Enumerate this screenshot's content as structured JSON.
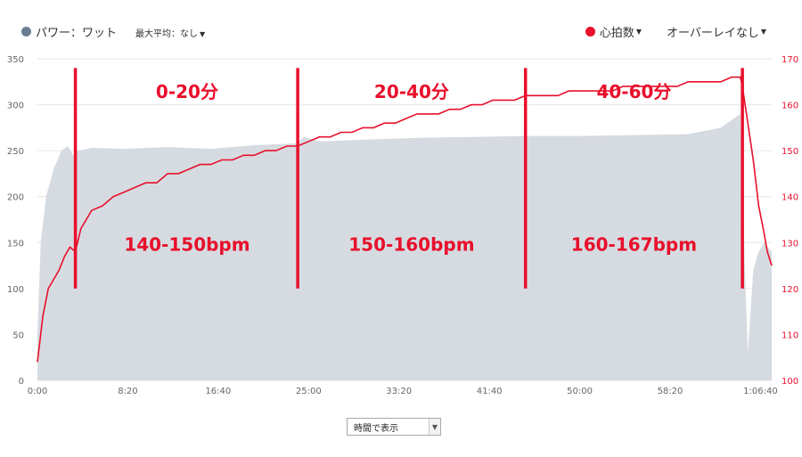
{
  "legend": {
    "power_label": "パワー：ワット",
    "power_color": "#6b7d93",
    "max_avg_label": "最大平均：なし",
    "hr_label": "心拍数",
    "hr_color": "#e8102b",
    "overlay_label": "オーバーレイなし"
  },
  "controls": {
    "view_select_value": "時間で表示",
    "chevron_icon": "chevron-down-icon"
  },
  "chart_data": {
    "type": "line",
    "x_unit": "minutes",
    "xlim": [
      0,
      67.7
    ],
    "x_tick_labels": [
      "0:00",
      "8:20",
      "16:40",
      "25:00",
      "33:20",
      "41:40",
      "50:00",
      "58:20",
      "1:06:40"
    ],
    "x_tick_values": [
      0,
      8.333,
      16.667,
      25,
      33.333,
      41.667,
      50,
      58.333,
      66.667
    ],
    "left_axis": {
      "ylim": [
        0,
        350
      ],
      "ticks": [
        0,
        50,
        100,
        150,
        200,
        250,
        300,
        350
      ]
    },
    "right_axis": {
      "ylim": [
        100,
        170
      ],
      "ticks": [
        100,
        110,
        120,
        130,
        140,
        150,
        160,
        170
      ],
      "color": "#e8102b"
    },
    "grid": true,
    "series": [
      {
        "name": "パワー：ワット",
        "axis": "left",
        "type": "area",
        "color": "#d6dbe1",
        "x": [
          0,
          0.3,
          0.8,
          1.5,
          2.2,
          2.8,
          3.3,
          3.8,
          5,
          8,
          12,
          16,
          20,
          24,
          24.5,
          26,
          30,
          35,
          40,
          45,
          50,
          55,
          60,
          63,
          64.8,
          65.2,
          65.5,
          66,
          66.5,
          67,
          67.7
        ],
        "values": [
          50,
          150,
          200,
          230,
          250,
          255,
          245,
          250,
          253,
          252,
          254,
          252,
          256,
          258,
          265,
          260,
          262,
          264,
          265,
          266,
          266,
          267,
          268,
          275,
          290,
          130,
          30,
          120,
          140,
          150,
          140
        ]
      },
      {
        "name": "心拍数",
        "axis": "right",
        "type": "line",
        "color": "#e8102b",
        "x": [
          0,
          0.5,
          1,
          1.5,
          2,
          2.5,
          3,
          3.5,
          4,
          5,
          6,
          7,
          8,
          9,
          10,
          11,
          12,
          13,
          14,
          15,
          16,
          17,
          18,
          19,
          20,
          21,
          22,
          23,
          24,
          25,
          26,
          27,
          28,
          29,
          30,
          31,
          32,
          33,
          34,
          35,
          36,
          37,
          38,
          39,
          40,
          41,
          42,
          43,
          44,
          45,
          46,
          47,
          48,
          49,
          50,
          51,
          52,
          53,
          54,
          55,
          56,
          57,
          58,
          59,
          60,
          61,
          62,
          63,
          64,
          64.8,
          65,
          65.5,
          66,
          66.5,
          67,
          67.3,
          67.7
        ],
        "values": [
          104,
          114,
          120,
          122,
          124,
          127,
          129,
          128,
          133,
          137,
          138,
          140,
          141,
          142,
          143,
          143,
          145,
          145,
          146,
          147,
          147,
          148,
          148,
          149,
          149,
          150,
          150,
          151,
          151,
          152,
          153,
          153,
          154,
          154,
          155,
          155,
          156,
          156,
          157,
          158,
          158,
          158,
          159,
          159,
          160,
          160,
          161,
          161,
          161,
          162,
          162,
          162,
          162,
          163,
          163,
          163,
          163,
          163,
          164,
          164,
          164,
          164,
          164,
          164,
          165,
          165,
          165,
          165,
          166,
          166,
          164,
          156,
          148,
          138,
          132,
          128,
          125
        ]
      }
    ],
    "annotations": {
      "dividers_x": [
        3.5,
        24,
        45,
        65
      ],
      "dividers_y_range": [
        100,
        340
      ],
      "color": "#e8102b",
      "labels": [
        {
          "text": "0-20分",
          "x": 13.8,
          "y": 314
        },
        {
          "text": "20-40分",
          "x": 34.5,
          "y": 314
        },
        {
          "text": "40-60分",
          "x": 55,
          "y": 314
        },
        {
          "text": "140-150bpm",
          "x": 13.8,
          "y": 148
        },
        {
          "text": "150-160bpm",
          "x": 34.5,
          "y": 148
        },
        {
          "text": "160-167bpm",
          "x": 55,
          "y": 148
        }
      ]
    }
  }
}
